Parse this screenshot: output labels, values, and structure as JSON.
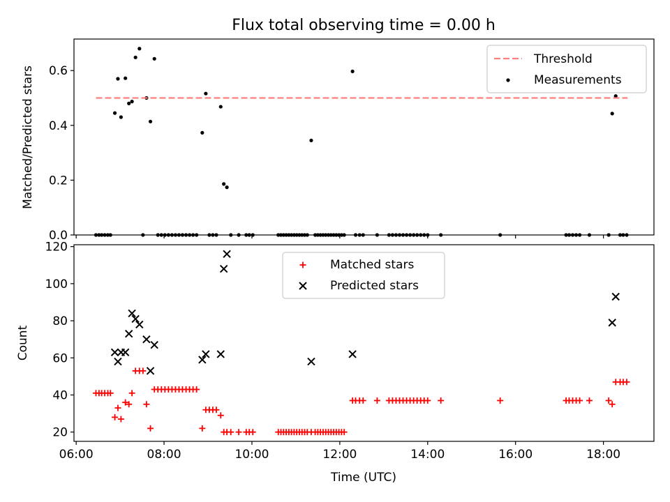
{
  "title": "Flux total observing time = 0.00 h",
  "chart_data": [
    {
      "type": "scatter",
      "title": "Flux total observing time = 0.00 h",
      "xlabel": "",
      "ylabel": "Matched/Predicted stars",
      "xlim": [
        5.95,
        19.15
      ],
      "ylim": [
        0.0,
        0.715
      ],
      "yticks": [
        0.0,
        0.2,
        0.4,
        0.6
      ],
      "ytick_labels": [
        "0.0",
        "0.2",
        "0.4",
        "0.6"
      ],
      "legend_position": "upper-right",
      "threshold": {
        "name": "Threshold",
        "y": 0.5,
        "x_range": [
          6.45,
          18.55
        ],
        "color": "#ff7f7f"
      },
      "series": [
        {
          "name": "Measurements",
          "color": "#000000",
          "marker": "dot",
          "points": [
            [
              6.45,
              0.0
            ],
            [
              6.52,
              0.0
            ],
            [
              6.58,
              0.0
            ],
            [
              6.65,
              0.0
            ],
            [
              6.72,
              0.0
            ],
            [
              6.78,
              0.0
            ],
            [
              6.88,
              0.445
            ],
            [
              6.95,
              0.57
            ],
            [
              7.02,
              0.43
            ],
            [
              7.12,
              0.572
            ],
            [
              7.2,
              0.48
            ],
            [
              7.27,
              0.487
            ],
            [
              7.35,
              0.648
            ],
            [
              7.44,
              0.68
            ],
            [
              7.52,
              0.0
            ],
            [
              7.6,
              0.5
            ],
            [
              7.69,
              0.414
            ],
            [
              7.78,
              0.643
            ],
            [
              7.86,
              0.0
            ],
            [
              7.94,
              0.0
            ],
            [
              8.02,
              0.0
            ],
            [
              8.1,
              0.0
            ],
            [
              8.18,
              0.0
            ],
            [
              8.26,
              0.0
            ],
            [
              8.34,
              0.0
            ],
            [
              8.42,
              0.0
            ],
            [
              8.5,
              0.0
            ],
            [
              8.58,
              0.0
            ],
            [
              8.66,
              0.0
            ],
            [
              8.74,
              0.0
            ],
            [
              8.87,
              0.373
            ],
            [
              8.95,
              0.516
            ],
            [
              9.03,
              0.0
            ],
            [
              9.11,
              0.0
            ],
            [
              9.19,
              0.0
            ],
            [
              9.29,
              0.468
            ],
            [
              9.36,
              0.186
            ],
            [
              9.43,
              0.174
            ],
            [
              9.52,
              0.0
            ],
            [
              9.7,
              0.0
            ],
            [
              9.87,
              0.0
            ],
            [
              9.94,
              0.0
            ],
            [
              10.02,
              0.0
            ],
            [
              10.6,
              0.0
            ],
            [
              10.66,
              0.0
            ],
            [
              10.72,
              0.0
            ],
            [
              10.78,
              0.0
            ],
            [
              10.84,
              0.0
            ],
            [
              10.9,
              0.0
            ],
            [
              10.96,
              0.0
            ],
            [
              11.02,
              0.0
            ],
            [
              11.08,
              0.0
            ],
            [
              11.14,
              0.0
            ],
            [
              11.2,
              0.0
            ],
            [
              11.26,
              0.0
            ],
            [
              11.35,
              0.345
            ],
            [
              11.44,
              0.0
            ],
            [
              11.5,
              0.0
            ],
            [
              11.56,
              0.0
            ],
            [
              11.62,
              0.0
            ],
            [
              11.68,
              0.0
            ],
            [
              11.74,
              0.0
            ],
            [
              11.8,
              0.0
            ],
            [
              11.86,
              0.0
            ],
            [
              11.92,
              0.0
            ],
            [
              11.98,
              0.0
            ],
            [
              12.04,
              0.0
            ],
            [
              12.1,
              0.0
            ],
            [
              12.29,
              0.597
            ],
            [
              12.36,
              0.0
            ],
            [
              12.45,
              0.0
            ],
            [
              12.53,
              0.0
            ],
            [
              12.85,
              0.0
            ],
            [
              13.12,
              0.0
            ],
            [
              13.2,
              0.0
            ],
            [
              13.28,
              0.0
            ],
            [
              13.36,
              0.0
            ],
            [
              13.44,
              0.0
            ],
            [
              13.52,
              0.0
            ],
            [
              13.6,
              0.0
            ],
            [
              13.68,
              0.0
            ],
            [
              13.76,
              0.0
            ],
            [
              13.84,
              0.0
            ],
            [
              13.92,
              0.0
            ],
            [
              14.0,
              0.0
            ],
            [
              14.3,
              0.0
            ],
            [
              15.65,
              0.0
            ],
            [
              17.15,
              0.0
            ],
            [
              17.22,
              0.0
            ],
            [
              17.3,
              0.0
            ],
            [
              17.38,
              0.0
            ],
            [
              17.46,
              0.0
            ],
            [
              17.68,
              0.0
            ],
            [
              18.12,
              0.0
            ],
            [
              18.2,
              0.443
            ],
            [
              18.28,
              0.507
            ],
            [
              18.38,
              0.0
            ],
            [
              18.45,
              0.0
            ],
            [
              18.53,
              0.0
            ]
          ]
        }
      ]
    },
    {
      "type": "scatter",
      "xlabel": "Time (UTC)",
      "ylabel": "Count",
      "xlim": [
        5.95,
        19.15
      ],
      "ylim": [
        15.0,
        121.0
      ],
      "yticks": [
        20,
        40,
        60,
        80,
        100,
        120
      ],
      "ytick_labels": [
        "20",
        "40",
        "60",
        "80",
        "100",
        "120"
      ],
      "xticks": [
        6,
        8,
        10,
        12,
        14,
        16,
        18
      ],
      "xtick_labels": [
        "06:00",
        "08:00",
        "10:00",
        "12:00",
        "14:00",
        "16:00",
        "18:00"
      ],
      "legend_position": "upper-center",
      "series": [
        {
          "name": "Matched stars",
          "color": "#ff0000",
          "marker": "plus",
          "points": [
            [
              6.45,
              41
            ],
            [
              6.52,
              41
            ],
            [
              6.58,
              41
            ],
            [
              6.65,
              41
            ],
            [
              6.72,
              41
            ],
            [
              6.78,
              41
            ],
            [
              6.88,
              28
            ],
            [
              6.95,
              33
            ],
            [
              7.02,
              27
            ],
            [
              7.12,
              36
            ],
            [
              7.2,
              35
            ],
            [
              7.27,
              41
            ],
            [
              7.35,
              53
            ],
            [
              7.44,
              53
            ],
            [
              7.52,
              53
            ],
            [
              7.6,
              35
            ],
            [
              7.69,
              22
            ],
            [
              7.78,
              43
            ],
            [
              7.86,
              43
            ],
            [
              7.94,
              43
            ],
            [
              8.02,
              43
            ],
            [
              8.1,
              43
            ],
            [
              8.18,
              43
            ],
            [
              8.26,
              43
            ],
            [
              8.34,
              43
            ],
            [
              8.42,
              43
            ],
            [
              8.5,
              43
            ],
            [
              8.58,
              43
            ],
            [
              8.66,
              43
            ],
            [
              8.74,
              43
            ],
            [
              8.87,
              22
            ],
            [
              8.95,
              32
            ],
            [
              9.03,
              32
            ],
            [
              9.11,
              32
            ],
            [
              9.19,
              32
            ],
            [
              9.29,
              29
            ],
            [
              9.36,
              20
            ],
            [
              9.43,
              20
            ],
            [
              9.52,
              20
            ],
            [
              9.7,
              20
            ],
            [
              9.87,
              20
            ],
            [
              9.94,
              20
            ],
            [
              10.02,
              20
            ],
            [
              10.6,
              20
            ],
            [
              10.66,
              20
            ],
            [
              10.72,
              20
            ],
            [
              10.78,
              20
            ],
            [
              10.84,
              20
            ],
            [
              10.9,
              20
            ],
            [
              10.96,
              20
            ],
            [
              11.02,
              20
            ],
            [
              11.08,
              20
            ],
            [
              11.14,
              20
            ],
            [
              11.2,
              20
            ],
            [
              11.26,
              20
            ],
            [
              11.35,
              20
            ],
            [
              11.44,
              20
            ],
            [
              11.5,
              20
            ],
            [
              11.56,
              20
            ],
            [
              11.62,
              20
            ],
            [
              11.68,
              20
            ],
            [
              11.74,
              20
            ],
            [
              11.8,
              20
            ],
            [
              11.86,
              20
            ],
            [
              11.92,
              20
            ],
            [
              11.98,
              20
            ],
            [
              12.04,
              20
            ],
            [
              12.1,
              20
            ],
            [
              12.29,
              37
            ],
            [
              12.36,
              37
            ],
            [
              12.45,
              37
            ],
            [
              12.53,
              37
            ],
            [
              12.85,
              37
            ],
            [
              13.12,
              37
            ],
            [
              13.2,
              37
            ],
            [
              13.28,
              37
            ],
            [
              13.36,
              37
            ],
            [
              13.44,
              37
            ],
            [
              13.52,
              37
            ],
            [
              13.6,
              37
            ],
            [
              13.68,
              37
            ],
            [
              13.76,
              37
            ],
            [
              13.84,
              37
            ],
            [
              13.92,
              37
            ],
            [
              14.0,
              37
            ],
            [
              14.3,
              37
            ],
            [
              15.65,
              37
            ],
            [
              17.15,
              37
            ],
            [
              17.22,
              37
            ],
            [
              17.3,
              37
            ],
            [
              17.38,
              37
            ],
            [
              17.46,
              37
            ],
            [
              17.68,
              37
            ],
            [
              18.12,
              37
            ],
            [
              18.2,
              35
            ],
            [
              18.28,
              47
            ],
            [
              18.38,
              47
            ],
            [
              18.45,
              47
            ],
            [
              18.53,
              47
            ]
          ]
        },
        {
          "name": "Predicted stars",
          "color": "#000000",
          "marker": "x",
          "points": [
            [
              6.88,
              63
            ],
            [
              6.95,
              58
            ],
            [
              7.02,
              63
            ],
            [
              7.12,
              63
            ],
            [
              7.2,
              73
            ],
            [
              7.27,
              84
            ],
            [
              7.35,
              81
            ],
            [
              7.44,
              78
            ],
            [
              7.6,
              70
            ],
            [
              7.69,
              53
            ],
            [
              7.78,
              67
            ],
            [
              8.87,
              59
            ],
            [
              8.95,
              62
            ],
            [
              9.29,
              62
            ],
            [
              9.36,
              108
            ],
            [
              9.43,
              116
            ],
            [
              11.35,
              58
            ],
            [
              12.29,
              62
            ],
            [
              18.2,
              79
            ],
            [
              18.28,
              93
            ]
          ]
        }
      ]
    }
  ]
}
